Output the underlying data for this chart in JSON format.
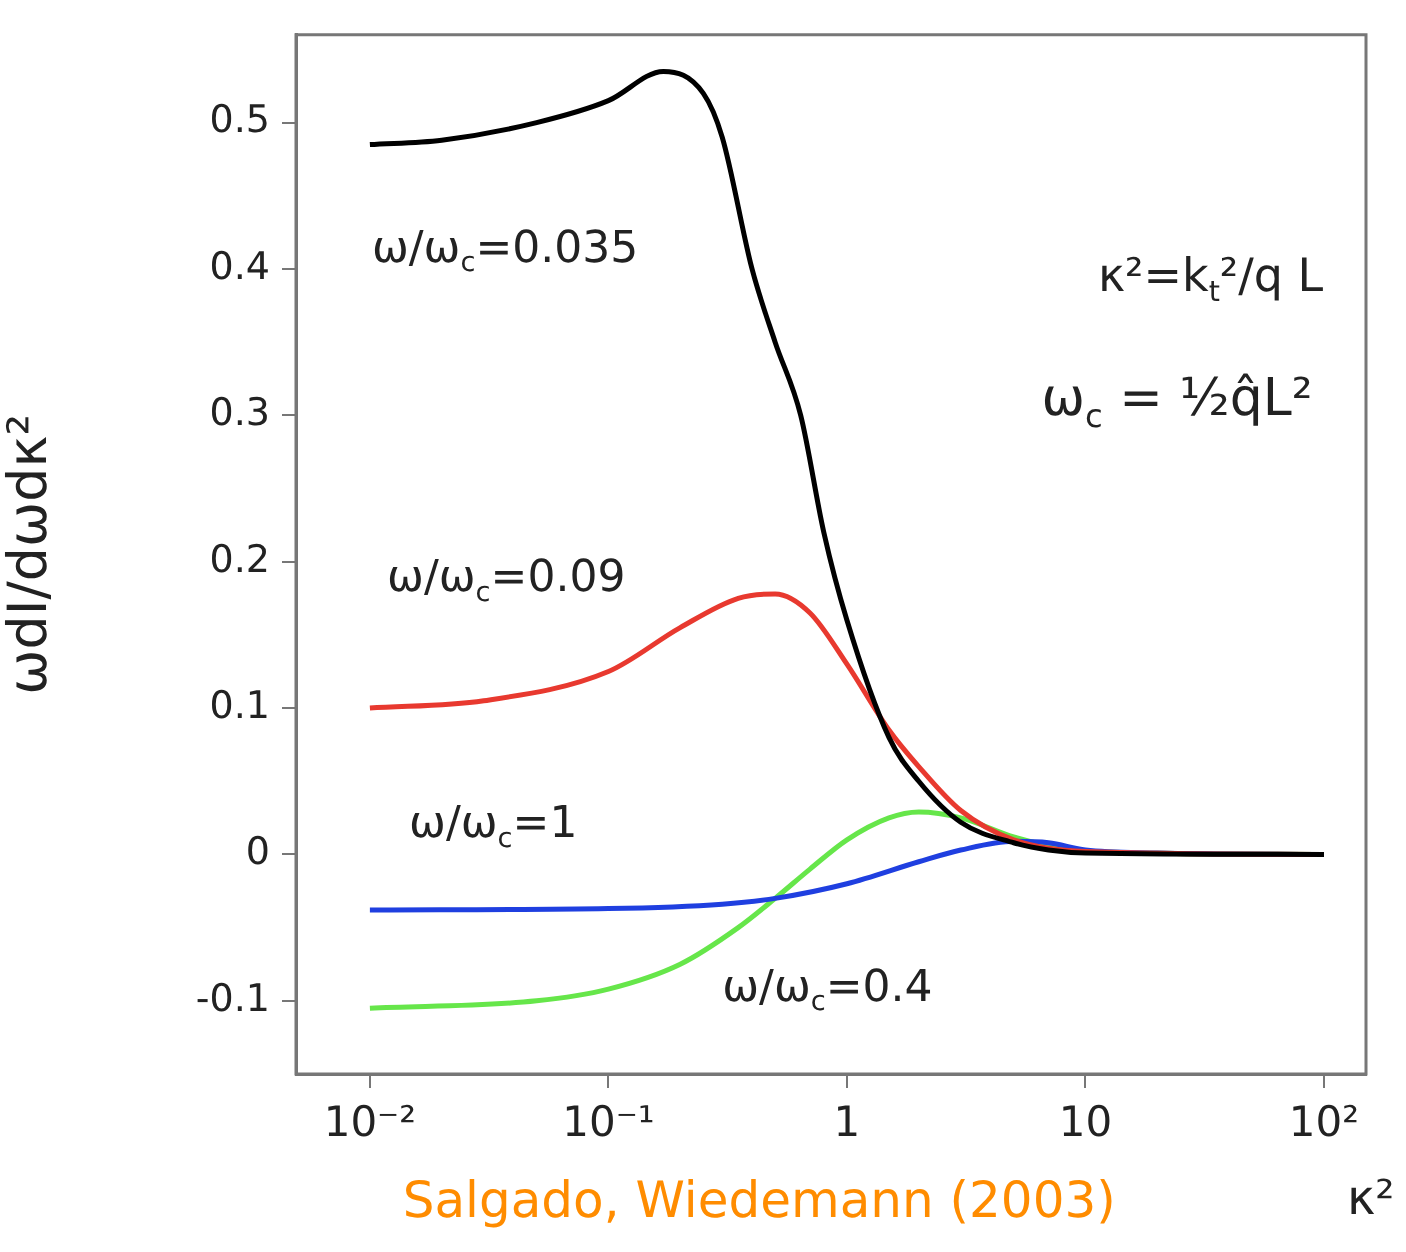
{
  "chart_data": {
    "type": "line",
    "xlabel": "κ²",
    "ylabel": "ωdI/dωdκ²",
    "log": "x",
    "grid": false,
    "legend": false,
    "marker": "none",
    "line_style": "solid",
    "xlim": [
      0.0049,
      150
    ],
    "xticks": [
      {
        "value": 0.01,
        "label": "10⁻²"
      },
      {
        "value": 0.1,
        "label": "10⁻¹"
      },
      1,
      10,
      {
        "value": 100,
        "label": "10²"
      }
    ],
    "ylim": [
      -0.15,
      0.56
    ],
    "yticks": [
      -0.1,
      0,
      0.1,
      0.2,
      0.3,
      0.4,
      0.5
    ],
    "series": [
      {
        "name": "ω/ω$_{c}$=0.035",
        "color": "#000000",
        "x": [
          0.01,
          0.02,
          0.05,
          0.1,
          0.17,
          0.25,
          0.3,
          0.4,
          0.5,
          0.64,
          0.8,
          1,
          1.5,
          2,
          3,
          5,
          7,
          10,
          100
        ],
        "values": [
          0.485,
          0.488,
          0.5,
          0.515,
          0.535,
          0.52,
          0.49,
          0.4,
          0.35,
          0.3,
          0.22,
          0.16,
          0.08,
          0.05,
          0.022,
          0.008,
          0.003,
          0.001,
          0
        ]
      },
      {
        "name": "ω/ω$_{c}$=0.09",
        "color": "#e8392f",
        "x": [
          0.01,
          0.03,
          0.1,
          0.2,
          0.35,
          0.5,
          0.7,
          1,
          1.5,
          2,
          3,
          5,
          10,
          100
        ],
        "values": [
          0.1,
          0.105,
          0.125,
          0.155,
          0.175,
          0.178,
          0.165,
          0.13,
          0.085,
          0.06,
          0.03,
          0.01,
          0.002,
          0
        ]
      },
      {
        "name": "ω/ω$_{c}$=1",
        "color": "#1f3fe0",
        "x": [
          0.01,
          0.1,
          0.3,
          0.5,
          1,
          2,
          3,
          5,
          7,
          10,
          20,
          100
        ],
        "values": [
          -0.038,
          -0.037,
          -0.034,
          -0.03,
          -0.02,
          -0.005,
          0.003,
          0.009,
          0.008,
          0.003,
          0.001,
          0
        ]
      },
      {
        "name": "ω/ω$_{c}$=0.4",
        "color": "#66e64a",
        "x": [
          0.01,
          0.05,
          0.1,
          0.2,
          0.35,
          0.5,
          0.7,
          1,
          1.5,
          2,
          3,
          5,
          7,
          10,
          100
        ],
        "values": [
          -0.105,
          -0.1,
          -0.092,
          -0.075,
          -0.05,
          -0.03,
          -0.01,
          0.01,
          0.025,
          0.029,
          0.025,
          0.012,
          0.006,
          0.002,
          0
        ]
      }
    ],
    "annotations": [
      "κ²=k$_{t}$²/q L",
      "ω$_{c}$ = ½q̂L²",
      "Salgado, Wiedemann (2003)"
    ]
  }
}
